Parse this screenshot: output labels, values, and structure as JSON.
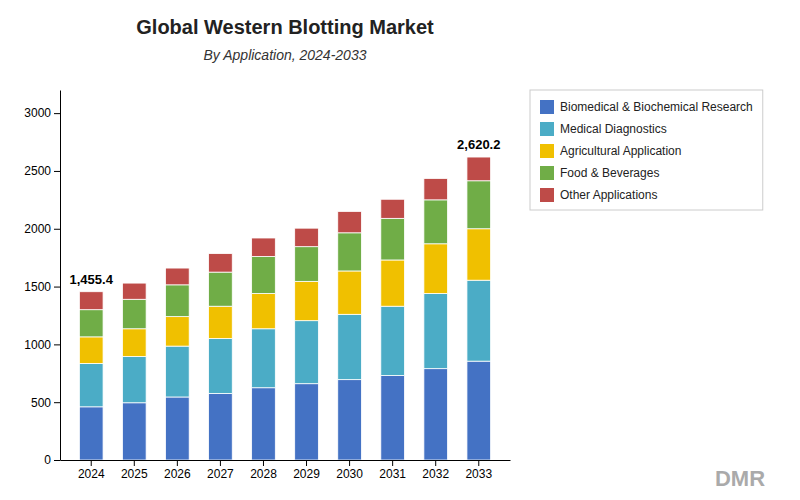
{
  "chart_data": {
    "type": "bar",
    "stacked": true,
    "title": "Global Western Blotting Market",
    "subtitle": "By Application, 2024-2033",
    "categories": [
      "2024",
      "2025",
      "2026",
      "2027",
      "2028",
      "2029",
      "2030",
      "2031",
      "2032",
      "2033"
    ],
    "series": [
      {
        "name": "Biomedical & Biochemical Research",
        "color": "#4472C4",
        "values": [
          460,
          495,
          545,
          575,
          625,
          660,
          695,
          730,
          790,
          855
        ]
      },
      {
        "name": "Medical Diagnostics",
        "color": "#4BACC6",
        "values": [
          375,
          400,
          440,
          475,
          510,
          545,
          565,
          600,
          650,
          700
        ]
      },
      {
        "name": "Agricultural Application",
        "color": "#F0C000",
        "values": [
          230,
          240,
          255,
          280,
          305,
          340,
          375,
          400,
          430,
          445
        ]
      },
      {
        "name": "Food & Beverages",
        "color": "#70AD47",
        "values": [
          235,
          255,
          275,
          295,
          320,
          300,
          330,
          360,
          380,
          415
        ]
      },
      {
        "name": "Other Applications",
        "color": "#BE4B48",
        "values": [
          155.4,
          140,
          145,
          160,
          160,
          160,
          185,
          165,
          185,
          205.2
        ]
      }
    ],
    "annotations": [
      {
        "text": "1,455.4",
        "x": "2024",
        "y": 1455.4
      },
      {
        "text": "2,620.2",
        "x": "2033",
        "y": 2620.2
      },
      {
        "text": "DMR"
      }
    ],
    "ylim": [
      0,
      3200
    ],
    "yticks": [
      0,
      500,
      1000,
      1500,
      2000,
      2500,
      3000
    ],
    "grid": false,
    "legend": "right"
  }
}
